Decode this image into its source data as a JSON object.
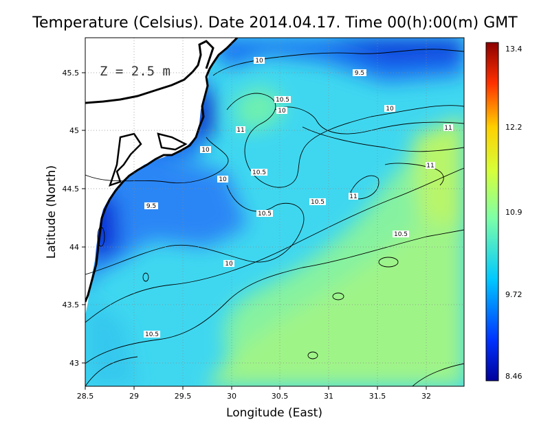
{
  "title": "Temperature (Celsius). Date 2014.04.17. Time 00(h):00(m)  GMT",
  "depth_label": "Z = 2.5 m",
  "x_axis": {
    "label": "Longitude (East)",
    "ticks": [
      "28.5",
      "29",
      "29.5",
      "30",
      "30.5",
      "31",
      "31.5",
      "32"
    ]
  },
  "y_axis": {
    "label": "Latitude (North)",
    "ticks": [
      "45.5",
      "45",
      "44.5",
      "44",
      "43.5",
      "43"
    ]
  },
  "colorbar": {
    "ticks": [
      "13.4",
      "12.2",
      "10.9",
      "9.72",
      "8.46"
    ]
  },
  "contour_labels": [
    {
      "id": "c1",
      "text": "10"
    },
    {
      "id": "c2",
      "text": "9.5"
    },
    {
      "id": "c3",
      "text": "10.5"
    },
    {
      "id": "c4",
      "text": "10"
    },
    {
      "id": "c5",
      "text": "10"
    },
    {
      "id": "c6",
      "text": "11"
    },
    {
      "id": "c7",
      "text": "11"
    },
    {
      "id": "c8",
      "text": "11"
    },
    {
      "id": "c9",
      "text": "10"
    },
    {
      "id": "c10",
      "text": "10.5"
    },
    {
      "id": "c11",
      "text": "10"
    },
    {
      "id": "c12",
      "text": "10.5"
    },
    {
      "id": "c13",
      "text": "11"
    },
    {
      "id": "c14",
      "text": "9.5"
    },
    {
      "id": "c15",
      "text": "10.5"
    },
    {
      "id": "c16",
      "text": "10.5"
    },
    {
      "id": "c17",
      "text": "10"
    },
    {
      "id": "c18",
      "text": "10.5"
    }
  ]
}
